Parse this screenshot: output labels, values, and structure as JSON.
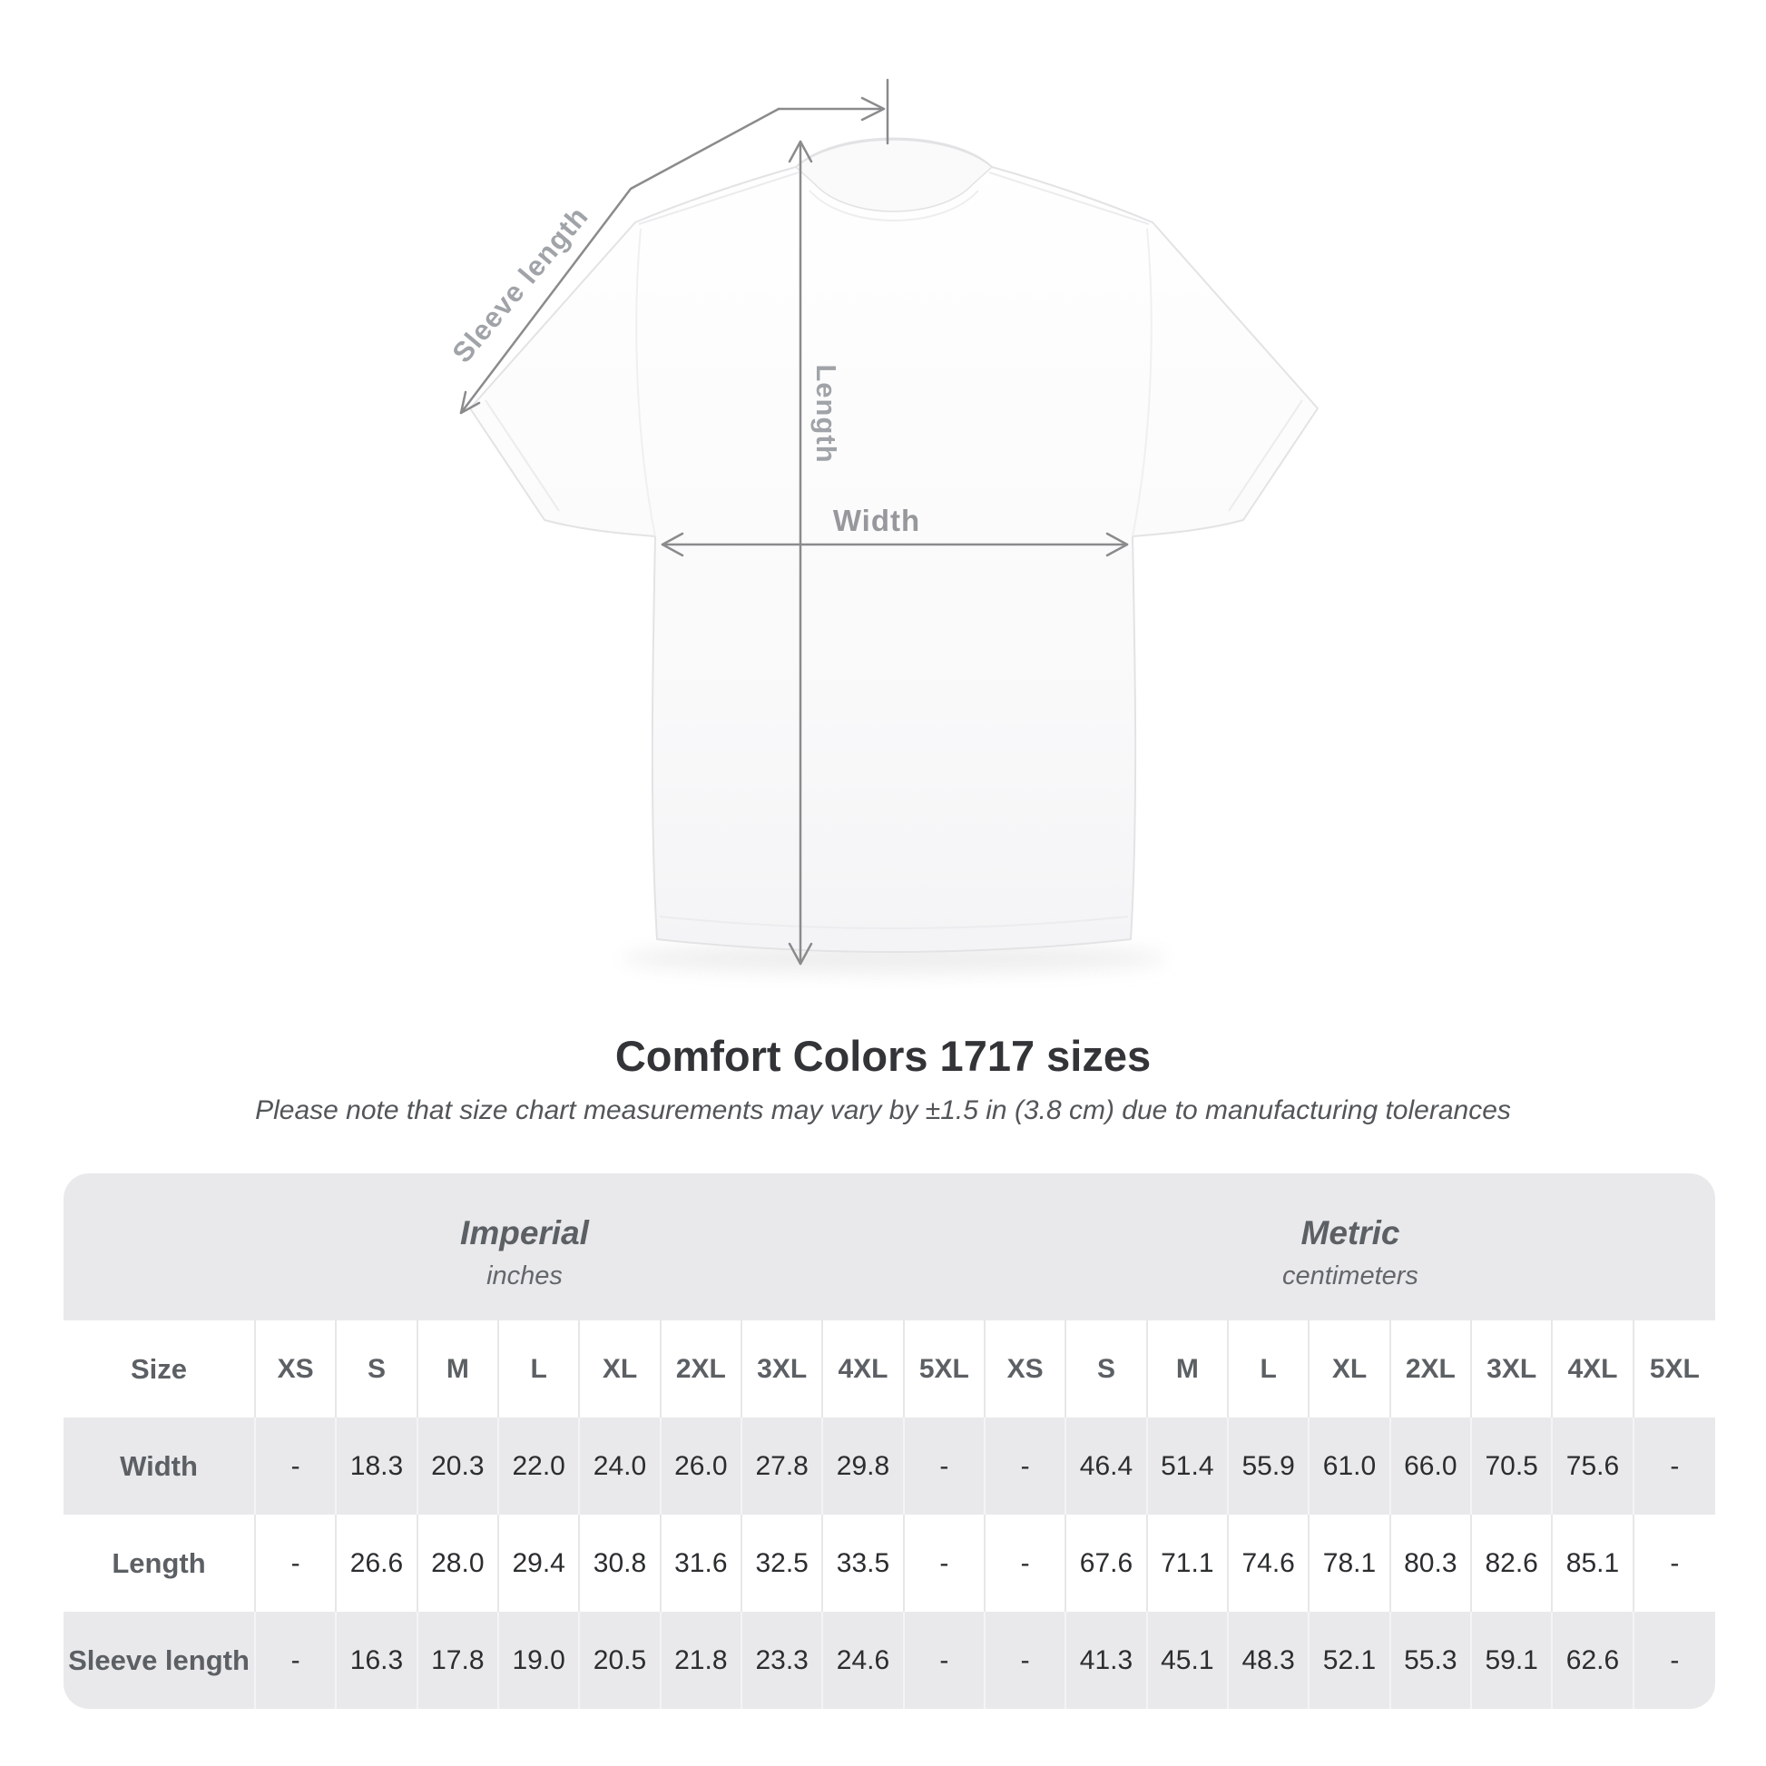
{
  "page": {
    "background": "#ffffff"
  },
  "diagram": {
    "sleeve_length_label": "Sleeve length",
    "length_label": "Length",
    "width_label": "Width",
    "line_color": "#8b8b8d",
    "label_color": "#a0a3a7"
  },
  "heading": {
    "title": "Comfort Colors 1717 sizes",
    "subtitle": "Please note that size chart measurements may vary by ±1.5 in (3.8 cm) due to manufacturing tolerances"
  },
  "table": {
    "accent_bg": "#e9e9eb",
    "header_text_color": "#5c6064",
    "value_text_color": "#2b2d2f",
    "groups": [
      {
        "id": "imperial",
        "label": "Imperial",
        "units": "inches"
      },
      {
        "id": "metric",
        "label": "Metric",
        "units": "centimeters"
      }
    ],
    "size_col_header": "Size",
    "sizes": [
      "XS",
      "S",
      "M",
      "L",
      "XL",
      "2XL",
      "3XL",
      "4XL",
      "5XL"
    ],
    "rows": [
      {
        "label": "Width",
        "imperial": [
          "-",
          "18.3",
          "20.3",
          "22.0",
          "24.0",
          "26.0",
          "27.8",
          "29.8",
          "-"
        ],
        "metric": [
          "-",
          "46.4",
          "51.4",
          "55.9",
          "61.0",
          "66.0",
          "70.5",
          "75.6",
          "-"
        ]
      },
      {
        "label": "Length",
        "imperial": [
          "-",
          "26.6",
          "28.0",
          "29.4",
          "30.8",
          "31.6",
          "32.5",
          "33.5",
          "-"
        ],
        "metric": [
          "-",
          "67.6",
          "71.1",
          "74.6",
          "78.1",
          "80.3",
          "82.6",
          "85.1",
          "-"
        ]
      },
      {
        "label": "Sleeve length",
        "imperial": [
          "-",
          "16.3",
          "17.8",
          "19.0",
          "20.5",
          "21.8",
          "23.3",
          "24.6",
          "-"
        ],
        "metric": [
          "-",
          "41.3",
          "45.1",
          "48.3",
          "52.1",
          "55.3",
          "59.1",
          "62.6",
          "-"
        ]
      }
    ]
  }
}
